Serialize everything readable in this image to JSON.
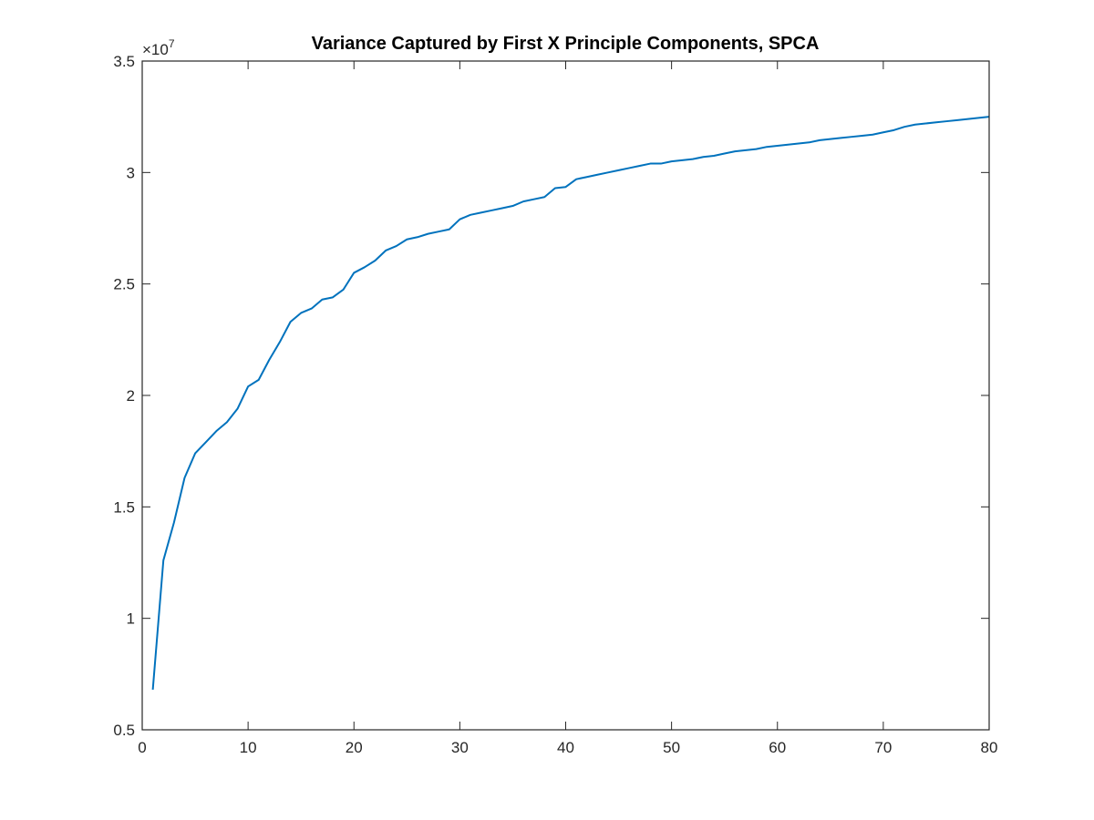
{
  "chart_data": {
    "type": "line",
    "title": "Variance Captured by First X Principle Components, SPCA",
    "xlabel": "",
    "ylabel": "",
    "xlim": [
      0,
      80
    ],
    "ylim": [
      0.5,
      3.5
    ],
    "y_multiplier": {
      "base": "×10",
      "exponent": "7"
    },
    "x_ticks": [
      0,
      10,
      20,
      30,
      40,
      50,
      60,
      70,
      80
    ],
    "y_ticks": [
      0.5,
      1,
      1.5,
      2,
      2.5,
      3,
      3.5
    ],
    "x_tick_labels": [
      "0",
      "10",
      "20",
      "30",
      "40",
      "50",
      "60",
      "70",
      "80"
    ],
    "y_tick_labels": [
      "0.5",
      "1",
      "1.5",
      "2",
      "2.5",
      "3",
      "3.5"
    ],
    "grid": false,
    "series": [
      {
        "color": "#0072bd",
        "x": [
          1,
          2,
          3,
          4,
          5,
          6,
          7,
          8,
          9,
          10,
          11,
          12,
          13,
          14,
          15,
          16,
          17,
          18,
          19,
          20,
          21,
          22,
          23,
          24,
          25,
          26,
          27,
          28,
          29,
          30,
          31,
          32,
          33,
          34,
          35,
          36,
          37,
          38,
          39,
          40,
          41,
          42,
          43,
          44,
          45,
          46,
          47,
          48,
          49,
          50,
          51,
          52,
          53,
          54,
          55,
          56,
          57,
          58,
          59,
          60,
          61,
          62,
          63,
          64,
          65,
          66,
          67,
          68,
          69,
          70,
          71,
          72,
          73,
          74,
          75,
          76,
          77,
          78,
          79,
          80
        ],
        "values": [
          0.68,
          1.26,
          1.43,
          1.63,
          1.74,
          1.79,
          1.84,
          1.88,
          1.94,
          2.04,
          2.07,
          2.16,
          2.24,
          2.33,
          2.37,
          2.39,
          2.43,
          2.44,
          2.475,
          2.55,
          2.575,
          2.605,
          2.65,
          2.67,
          2.7,
          2.71,
          2.725,
          2.735,
          2.745,
          2.79,
          2.81,
          2.82,
          2.83,
          2.84,
          2.85,
          2.87,
          2.88,
          2.89,
          2.93,
          2.935,
          2.97,
          2.98,
          2.99,
          3.0,
          3.01,
          3.02,
          3.03,
          3.04,
          3.04,
          3.05,
          3.055,
          3.06,
          3.07,
          3.075,
          3.085,
          3.095,
          3.1,
          3.105,
          3.115,
          3.12,
          3.125,
          3.13,
          3.135,
          3.145,
          3.15,
          3.155,
          3.16,
          3.165,
          3.17,
          3.18,
          3.19,
          3.205,
          3.215,
          3.22,
          3.225,
          3.23,
          3.235,
          3.24,
          3.245,
          3.25
        ]
      }
    ]
  }
}
